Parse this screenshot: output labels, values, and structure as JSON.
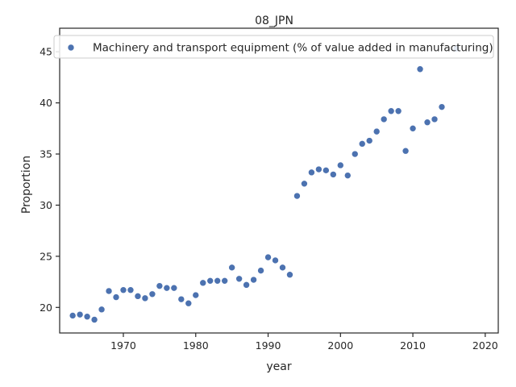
{
  "chart_data": {
    "type": "scatter",
    "title": "08_JPN",
    "xlabel": "year",
    "ylabel": "Proportion",
    "xlim": [
      1961.2,
      2021.8
    ],
    "ylim": [
      17.5,
      47.3
    ],
    "xticks": [
      1970,
      1980,
      1990,
      2000,
      2010,
      2020
    ],
    "yticks": [
      20,
      25,
      30,
      35,
      40,
      45
    ],
    "grid": false,
    "legend_position": "top",
    "marker_color": "#4c72b0",
    "series": [
      {
        "name": "Machinery and transport equipment (% of value added in manufacturing)",
        "x": [
          1963,
          1964,
          1965,
          1966,
          1967,
          1968,
          1969,
          1970,
          1971,
          1972,
          1973,
          1974,
          1975,
          1976,
          1977,
          1978,
          1979,
          1980,
          1981,
          1982,
          1983,
          1984,
          1985,
          1986,
          1987,
          1988,
          1989,
          1990,
          1991,
          1992,
          1993,
          1994,
          1995,
          1996,
          1997,
          1998,
          1999,
          2000,
          2001,
          2002,
          2003,
          2004,
          2005,
          2006,
          2007,
          2008,
          2009,
          2010,
          2011,
          2012,
          2013,
          2014,
          2016
        ],
        "y": [
          19.2,
          19.3,
          19.1,
          18.8,
          19.8,
          21.6,
          21.0,
          21.7,
          21.7,
          21.1,
          20.9,
          21.3,
          22.1,
          21.9,
          21.9,
          20.8,
          20.4,
          21.2,
          22.4,
          22.6,
          22.6,
          22.6,
          23.9,
          22.8,
          22.2,
          22.7,
          23.6,
          24.9,
          24.6,
          23.9,
          23.2,
          30.9,
          32.1,
          33.2,
          33.5,
          33.4,
          33.0,
          33.9,
          32.9,
          35.0,
          36.0,
          36.3,
          37.2,
          38.4,
          39.2,
          39.2,
          35.3,
          37.5,
          43.3,
          38.1,
          38.4,
          39.6,
          45.3
        ]
      }
    ]
  }
}
